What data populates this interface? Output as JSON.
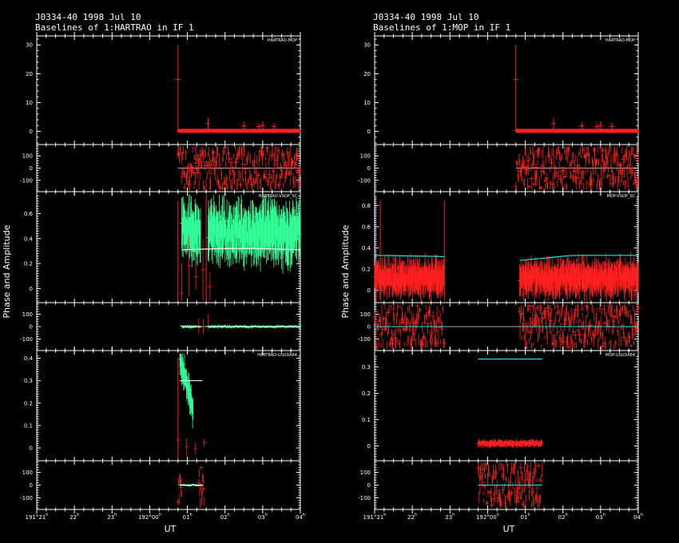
{
  "window": {
    "background": "#000000",
    "foreground": "#ffffff"
  },
  "colors": {
    "red": "#ff2020",
    "green": "#33ff99",
    "cyan": "#33dddd",
    "white": "#ffffff"
  },
  "left": {
    "title": "J0334-40  1998 Jul 10",
    "subtitle": "Baselines of 1:HARTRAO in IF 1"
  },
  "right": {
    "title": "J0334-40  1998 Jul 10",
    "subtitle": "Baselines of 1:MOP in IF 1"
  },
  "labels": {
    "ylabel": "Phase and Amplitude",
    "xlabel": "UT"
  },
  "x_ticks": [
    {
      "value": 21,
      "label": "191°21",
      "sup": "h"
    },
    {
      "value": 22,
      "label": "22",
      "sup": "h"
    },
    {
      "value": 23,
      "label": "23",
      "sup": "h"
    },
    {
      "value": 24,
      "label": "192°00",
      "sup": "h"
    },
    {
      "value": 25,
      "label": "01",
      "sup": "h"
    },
    {
      "value": 26,
      "label": "02",
      "sup": "h"
    },
    {
      "value": 27,
      "label": "03",
      "sup": "h"
    },
    {
      "value": 28,
      "label": "04",
      "sup": "h"
    }
  ],
  "chart_data": [
    {
      "type": "scatter",
      "title": "J0334-40  1998 Jul 10",
      "subtitle": "Baselines of 1:HARTRAO in IF 1",
      "xlabel": "UT",
      "ylabel": "Phase and Amplitude",
      "xlim": [
        21,
        28
      ],
      "panels": [
        {
          "baseline": "HARTRAO-MOP",
          "amplitude": {
            "ylim": [
              -4,
              32
            ],
            "ticks": [
              "0",
              "10",
              "20",
              "30"
            ],
            "series": [
              {
                "name": "",
                "color": "red",
                "segments": [
                  [
                    24.75,
                    28.0
                  ]
                ],
                "level": 0.2,
                "scatter": 0.5,
                "spikes": [
                  [
                    24.75,
                    30
                  ],
                  [
                    25.55,
                    4.5
                  ],
                  [
                    26.5,
                    3.2
                  ],
                  [
                    26.9,
                    2.8
                  ],
                  [
                    27.0,
                    3.5
                  ],
                  [
                    27.3,
                    2.9
                  ]
                ]
              }
            ]
          },
          "phase": {
            "ylim": [
              -180,
              180
            ],
            "ticks": [
              "-100",
              "0",
              "100"
            ],
            "series": [
              {
                "color": "red",
                "segments": [
                  [
                    24.75,
                    28.0
                  ]
                ],
                "spread": 180
              }
            ]
          }
        },
        {
          "baseline": "HARTRAO-VSOP_SC",
          "amplitude": {
            "ylim": [
              -0.1,
              0.75
            ],
            "ticks": [
              "0",
              "0.2",
              "0.4",
              "0.6"
            ],
            "series": [
              {
                "color": "green",
                "segments": [
                  [
                    24.85,
                    25.35
                  ],
                  [
                    25.55,
                    28.0
                  ]
                ],
                "level": 0.45,
                "scatter": 0.25
              },
              {
                "color": "red",
                "segments": [
                  [
                    24.85,
                    25.6
                  ]
                ],
                "level": 0.05,
                "scatter": 0.25,
                "sparse": true
              }
            ],
            "model": {
              "color": "white",
              "segments": [
                [
                  24.85,
                  28.0
                ]
              ],
              "values": [
                0.31,
                0.32,
                0.32,
                0.31
              ]
            },
            "spikes": [
              [
                24.75,
                0.7
              ],
              [
                25.5,
                0.8
              ]
            ]
          },
          "phase": {
            "ylim": [
              -180,
              180
            ],
            "ticks": [
              "-100",
              "0",
              "100"
            ],
            "series": [
              {
                "color": "green",
                "segments": [
                  [
                    24.85,
                    25.35
                  ],
                  [
                    25.55,
                    28.0
                  ]
                ],
                "spread": 12
              },
              {
                "color": "red",
                "segments": [
                  [
                    25.3,
                    25.55
                  ]
                ],
                "spread": 100,
                "sparse": true
              }
            ]
          }
        },
        {
          "baseline": "HARTRAO-USUDA64",
          "amplitude": {
            "ylim": [
              -0.05,
              0.42
            ],
            "ticks": [
              "0",
              "0.1",
              "0.2",
              "0.3",
              "0.4"
            ],
            "series": [
              {
                "color": "green",
                "segments": [
                  [
                    24.8,
                    25.15
                  ]
                ],
                "level": 0.25,
                "scatter": 0.08,
                "trend": [
                  0.39,
                  0.18
                ]
              },
              {
                "color": "red",
                "segments": [
                  [
                    24.75,
                    25.45
                  ]
                ],
                "level": 0.01,
                "scatter": 0.04,
                "sparse": true
              }
            ],
            "model": {
              "color": "white",
              "segments": [
                [
                  24.8,
                  25.4
                ]
              ],
              "values": [
                0.3,
                0.3
              ]
            },
            "spikes": [
              [
                24.75,
                0.4
              ]
            ]
          },
          "phase": {
            "ylim": [
              -180,
              180
            ],
            "ticks": [
              "-100",
              "0",
              "100"
            ],
            "series": [
              {
                "color": "green",
                "segments": [
                  [
                    24.8,
                    25.4
                  ]
                ],
                "spread": 10
              },
              {
                "color": "red",
                "segments": [
                  [
                    24.75,
                    24.85
                  ],
                  [
                    25.3,
                    25.45
                  ]
                ],
                "spread": 170
              }
            ]
          }
        }
      ]
    },
    {
      "type": "scatter",
      "title": "J0334-40  1998 Jul 10",
      "subtitle": "Baselines of 1:MOP in IF 1",
      "xlabel": "UT",
      "ylabel": "Phase and Amplitude",
      "xlim": [
        21,
        28
      ],
      "panels": [
        {
          "baseline": "HARTRAO-MOP",
          "amplitude": {
            "ylim": [
              -4,
              32
            ],
            "ticks": [
              "0",
              "10",
              "20",
              "30"
            ],
            "series": [
              {
                "name": "",
                "color": "red",
                "segments": [
                  [
                    24.75,
                    28.0
                  ]
                ],
                "level": 0.2,
                "scatter": 0.5,
                "spikes": [
                  [
                    24.75,
                    30
                  ],
                  [
                    25.75,
                    4.5
                  ],
                  [
                    26.5,
                    3.2
                  ],
                  [
                    26.9,
                    2.8
                  ],
                  [
                    27.0,
                    3.5
                  ],
                  [
                    27.3,
                    2.9
                  ]
                ]
              }
            ]
          },
          "phase": {
            "ylim": [
              -180,
              180
            ],
            "ticks": [
              "-100",
              "0",
              "100"
            ],
            "series": [
              {
                "color": "red",
                "segments": [
                  [
                    24.75,
                    28.0
                  ]
                ],
                "spread": 180
              }
            ]
          }
        },
        {
          "baseline": "MOP-VSOP_SC",
          "amplitude": {
            "ylim": [
              -0.1,
              0.9
            ],
            "ticks": [
              "0",
              "0.2",
              "0.4",
              "0.6",
              "0.8"
            ],
            "series": [
              {
                "color": "red",
                "segments": [
                  [
                    21.0,
                    22.85
                  ],
                  [
                    24.85,
                    28.0
                  ]
                ],
                "level": 0.12,
                "scatter": 0.18
              }
            ],
            "model": {
              "color": "cyan",
              "segments": [
                [
                  21.0,
                  22.85
                ],
                [
                  24.85,
                  28.0
                ]
              ],
              "values": [
                0.33,
                0.32,
                0.27,
                0.33,
                0.33
              ]
            },
            "spikes": [
              [
                21.15,
                0.85
              ],
              [
                22.85,
                0.85
              ]
            ]
          },
          "phase": {
            "ylim": [
              -180,
              180
            ],
            "ticks": [
              "-100",
              "0",
              "100"
            ],
            "series": [
              {
                "color": "red",
                "segments": [
                  [
                    21.0,
                    22.85
                  ],
                  [
                    24.85,
                    28.0
                  ]
                ],
                "spread": 180
              }
            ]
          }
        },
        {
          "baseline": "MOP-USUDA64",
          "amplitude": {
            "ylim": [
              -0.05,
              0.35
            ],
            "ticks": [
              "0",
              "0.1",
              "0.2",
              "0.3"
            ],
            "series": [
              {
                "color": "red",
                "segments": [
                  [
                    23.75,
                    25.45
                  ]
                ],
                "level": 0.01,
                "scatter": 0.015
              }
            ],
            "model": {
              "color": "cyan",
              "segments": [
                [
                  23.75,
                  25.45
                ]
              ],
              "values": [
                0.33,
                0.33
              ]
            }
          },
          "phase": {
            "ylim": [
              -180,
              180
            ],
            "ticks": [
              "-100",
              "0",
              "100"
            ],
            "series": [
              {
                "color": "red",
                "segments": [
                  [
                    23.75,
                    25.45
                  ]
                ],
                "spread": 180
              }
            ]
          }
        }
      ]
    }
  ]
}
